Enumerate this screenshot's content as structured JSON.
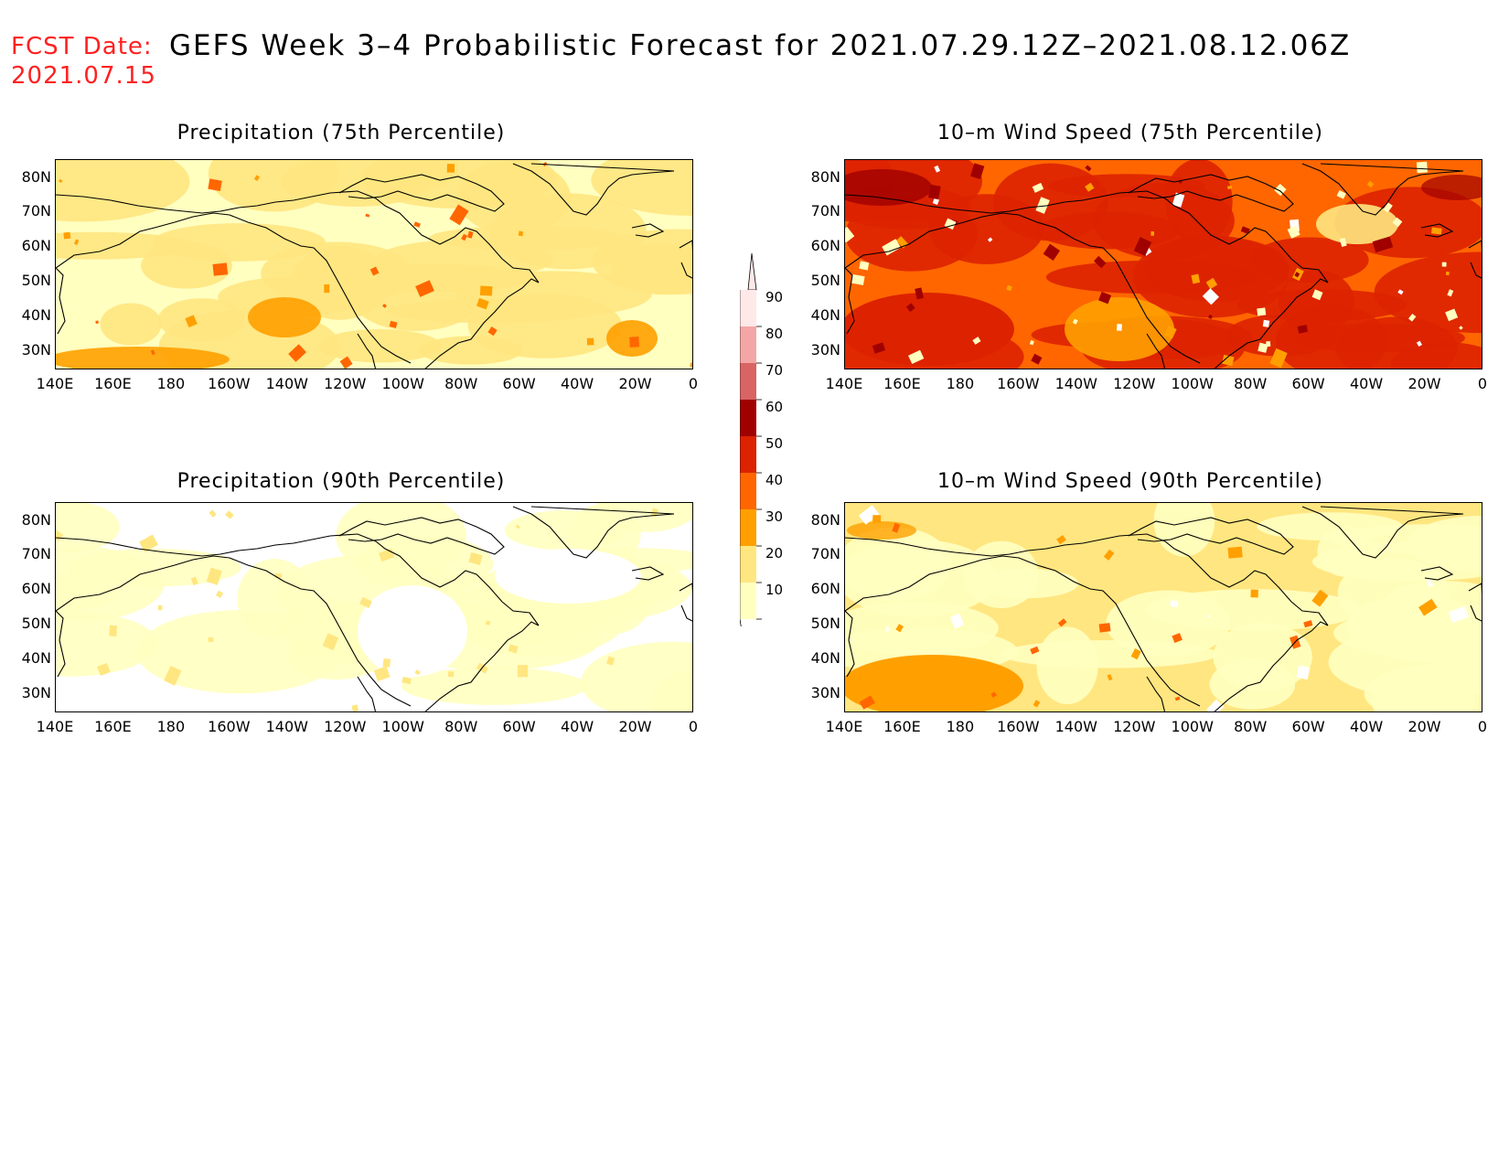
{
  "header": {
    "fcst_label": "FCST Date:",
    "fcst_date": "2021.07.15",
    "title": "GEFS Week 3–4 Probabilistic Forecast for 2021.07.29.12Z–2021.08.12.06Z"
  },
  "panels": [
    {
      "title": "Precipitation (75th Percentile)",
      "scheme": "precip75"
    },
    {
      "title": "10–m Wind Speed (75th Percentile)",
      "scheme": "wind75"
    },
    {
      "title": "Precipitation (90th Percentile)",
      "scheme": "precip90"
    },
    {
      "title": "10–m Wind Speed (90th Percentile)",
      "scheme": "wind90"
    }
  ],
  "axes": {
    "lat_labels": [
      "80N",
      "70N",
      "60N",
      "50N",
      "40N",
      "30N"
    ],
    "lon_labels": [
      "140E",
      "160E",
      "180",
      "160W",
      "140W",
      "120W",
      "100W",
      "80W",
      "60W",
      "40W",
      "20W",
      "0"
    ]
  },
  "colorbar": {
    "levels": [
      "90",
      "80",
      "70",
      "60",
      "50",
      "40",
      "30",
      "20",
      "10"
    ],
    "colors": [
      "#ffe8e8",
      "#f4a6a6",
      "#d86464",
      "#a00000",
      "#dd2200",
      "#ff6600",
      "#ffa000",
      "#ffe680",
      "#ffffc0"
    ]
  },
  "palette": {
    "white": "#ffffff",
    "c10_20": "#ffffc0",
    "c20_30": "#ffe680",
    "c30_40": "#ffa000",
    "c40_50": "#ff6600",
    "c50_60": "#dd2200",
    "c60_70": "#a00000",
    "coast": "#000000",
    "header_red": "#ff2020"
  }
}
